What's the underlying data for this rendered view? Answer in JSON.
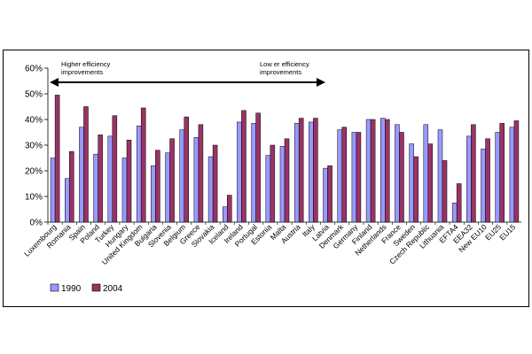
{
  "chart_data": {
    "type": "bar",
    "categories": [
      "Luxembourg",
      "Romania",
      "Spain",
      "Poland",
      "Turkey",
      "Hungary",
      "United Kingdom",
      "Bulgaria",
      "Slovenia",
      "Belgium",
      "Greece",
      "Slovakia",
      "Iceland",
      "Ireland",
      "Portugal",
      "Estonia",
      "Malta",
      "Austria",
      "Italy",
      "Latvia",
      "Denmark",
      "Germany",
      "Finland",
      "Netherlands",
      "France",
      "Sweden",
      "Czech Republic",
      "Lithuania",
      "EFTA4",
      "EEA32",
      "New EU10",
      "EU25",
      "EU15"
    ],
    "series": [
      {
        "name": "1990",
        "color": "#9999ff",
        "values": [
          25,
          17,
          37,
          26.5,
          33.5,
          25,
          37.5,
          22,
          27,
          36,
          33,
          25.5,
          6,
          39,
          38.5,
          26,
          29.5,
          38.5,
          39,
          21,
          36,
          35,
          40,
          40.5,
          38,
          30.5,
          38,
          36,
          7.5,
          33.5,
          28.5,
          35,
          37
        ]
      },
      {
        "name": "2004",
        "color": "#993366",
        "values": [
          49.5,
          27.5,
          45,
          34,
          41.5,
          32,
          44.5,
          28,
          32.5,
          41,
          38,
          30,
          10.5,
          43.5,
          42.5,
          30,
          32.5,
          40.5,
          40.5,
          22,
          37,
          35,
          40,
          40,
          35,
          25.5,
          30.5,
          24,
          15,
          38,
          32.5,
          38.5,
          39.5
        ]
      }
    ],
    "ylim": [
      0,
      60
    ],
    "yticks": [
      "0%",
      "10%",
      "20%",
      "30%",
      "40%",
      "50%",
      "60%"
    ],
    "annotations": {
      "left": [
        "Higher efficiency",
        "improvements"
      ],
      "right": [
        "Low er efficiency",
        "improvements"
      ]
    },
    "legend": {
      "position": "bottom-left"
    }
  }
}
